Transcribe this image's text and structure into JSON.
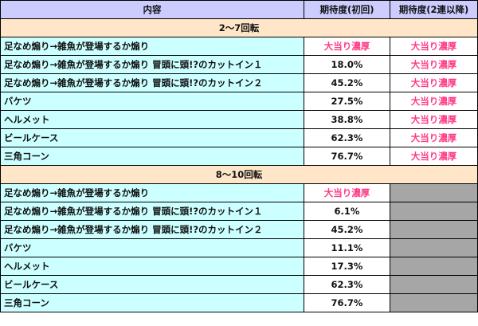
{
  "table": {
    "headers": [
      "内容",
      "期待度(初回)",
      "期待度(2連以降)"
    ],
    "sections": [
      {
        "title": "2〜7回転",
        "rows": [
          {
            "name": "足なめ煽り→雑魚が登場するか煽り",
            "first": "大当り濃厚",
            "first_hot": true,
            "repeat": "大当り濃厚",
            "repeat_hot": true
          },
          {
            "name": "足なめ煽り→雑魚が登場するか煽り 冒頭に頭!?のカットイン１",
            "first": "18.0%",
            "first_hot": false,
            "repeat": "大当り濃厚",
            "repeat_hot": true
          },
          {
            "name": "足なめ煽り→雑魚が登場するか煽り 冒頭に頭!?のカットイン２",
            "first": "45.2%",
            "first_hot": false,
            "repeat": "大当り濃厚",
            "repeat_hot": true
          },
          {
            "name": "バケツ",
            "first": "27.5%",
            "first_hot": false,
            "repeat": "大当り濃厚",
            "repeat_hot": true
          },
          {
            "name": "ヘルメット",
            "first": "38.8%",
            "first_hot": false,
            "repeat": "大当り濃厚",
            "repeat_hot": true
          },
          {
            "name": "ビールケース",
            "first": "62.3%",
            "first_hot": false,
            "repeat": "大当り濃厚",
            "repeat_hot": true
          },
          {
            "name": "三角コーン",
            "first": "76.7%",
            "first_hot": false,
            "repeat": "大当り濃厚",
            "repeat_hot": true
          }
        ]
      },
      {
        "title": "8〜10回転",
        "rows": [
          {
            "name": "足なめ煽り→雑魚が登場するか煽り",
            "first": "大当り濃厚",
            "first_hot": true,
            "repeat": null
          },
          {
            "name": "足なめ煽り→雑魚が登場するか煽り 冒頭に頭!?のカットイン１",
            "first": "6.1%",
            "first_hot": false,
            "repeat": null
          },
          {
            "name": "足なめ煽り→雑魚が登場するか煽り 冒頭に頭!?のカットイン２",
            "first": "45.2%",
            "first_hot": false,
            "repeat": null
          },
          {
            "name": "バケツ",
            "first": "11.1%",
            "first_hot": false,
            "repeat": null
          },
          {
            "name": "ヘルメット",
            "first": "17.3%",
            "first_hot": false,
            "repeat": null
          },
          {
            "name": "ビールケース",
            "first": "62.3%",
            "first_hot": false,
            "repeat": null
          },
          {
            "name": "三角コーン",
            "first": "76.7%",
            "first_hot": false,
            "repeat": null
          }
        ]
      }
    ],
    "colors": {
      "header_bg": "#ccccff",
      "section_bg": "#ffe6c8",
      "name_bg": "#ccffff",
      "hot_text": "#ff3b86",
      "na_bg": "#a6a6a6"
    }
  }
}
